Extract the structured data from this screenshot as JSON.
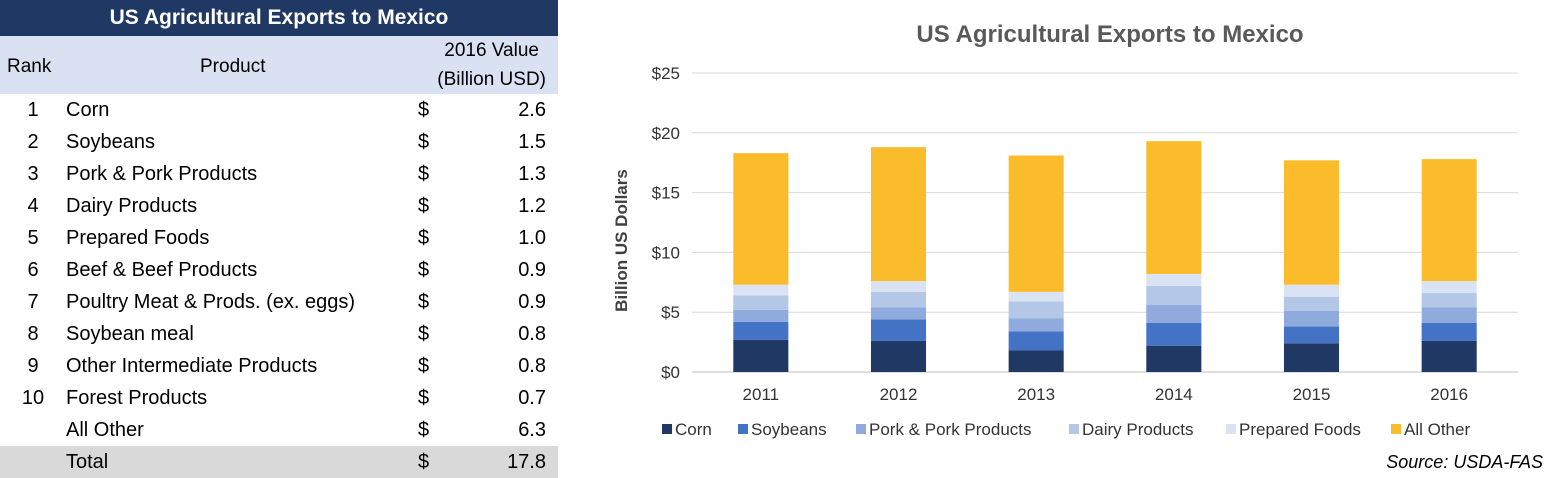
{
  "table": {
    "title": "US Agricultural Exports to Mexico",
    "headers": {
      "rank": "Rank",
      "product": "Product",
      "value_line1": "2016 Value",
      "value_line2": "(Billion USD)"
    },
    "currency_symbol": "$",
    "rows": [
      {
        "rank": "1",
        "product": "Corn",
        "value": "2.6"
      },
      {
        "rank": "2",
        "product": "Soybeans",
        "value": "1.5"
      },
      {
        "rank": "3",
        "product": "Pork & Pork Products",
        "value": "1.3"
      },
      {
        "rank": "4",
        "product": "Dairy Products",
        "value": "1.2"
      },
      {
        "rank": "5",
        "product": "Prepared Foods",
        "value": "1.0"
      },
      {
        "rank": "6",
        "product": "Beef & Beef Products",
        "value": "0.9"
      },
      {
        "rank": "7",
        "product": "Poultry Meat & Prods. (ex. eggs)",
        "value": "0.9"
      },
      {
        "rank": "8",
        "product": "Soybean meal",
        "value": "0.8"
      },
      {
        "rank": "9",
        "product": "Other Intermediate Products",
        "value": "0.8"
      },
      {
        "rank": "10",
        "product": "Forest Products",
        "value": "0.7"
      },
      {
        "rank": "",
        "product": "All Other",
        "value": "6.3"
      }
    ],
    "total": {
      "label": "Total",
      "value": "17.8"
    }
  },
  "chart_data": {
    "type": "bar",
    "stacked": true,
    "title": "US Agricultural Exports to Mexico",
    "ylabel": "Billion US Dollars",
    "xlabel": "",
    "categories": [
      "2011",
      "2012",
      "2013",
      "2014",
      "2015",
      "2016"
    ],
    "ylim": [
      0,
      25
    ],
    "yticks": [
      0,
      5,
      10,
      15,
      20,
      25
    ],
    "ytick_labels": [
      "$0",
      "$5",
      "$10",
      "$15",
      "$20",
      "$25"
    ],
    "grid": true,
    "legend_position": "bottom",
    "series": [
      {
        "name": "Corn",
        "color": "#203864",
        "values": [
          2.7,
          2.6,
          1.8,
          2.2,
          2.4,
          2.6
        ]
      },
      {
        "name": "Soybeans",
        "color": "#4472c4",
        "values": [
          1.5,
          1.8,
          1.6,
          1.9,
          1.4,
          1.5
        ]
      },
      {
        "name": "Pork & Pork Products",
        "color": "#8faadc",
        "values": [
          1.0,
          1.0,
          1.1,
          1.5,
          1.3,
          1.3
        ]
      },
      {
        "name": "Dairy Products",
        "color": "#b4c7e7",
        "values": [
          1.2,
          1.3,
          1.4,
          1.6,
          1.2,
          1.2
        ]
      },
      {
        "name": "Prepared Foods",
        "color": "#dae3f3",
        "values": [
          0.9,
          0.9,
          0.8,
          1.0,
          1.0,
          1.0
        ]
      },
      {
        "name": "All Other",
        "color": "#fbbc2c",
        "values": [
          11.0,
          11.2,
          11.4,
          11.1,
          10.4,
          10.2
        ]
      }
    ],
    "source": "Source: USDA-FAS"
  }
}
